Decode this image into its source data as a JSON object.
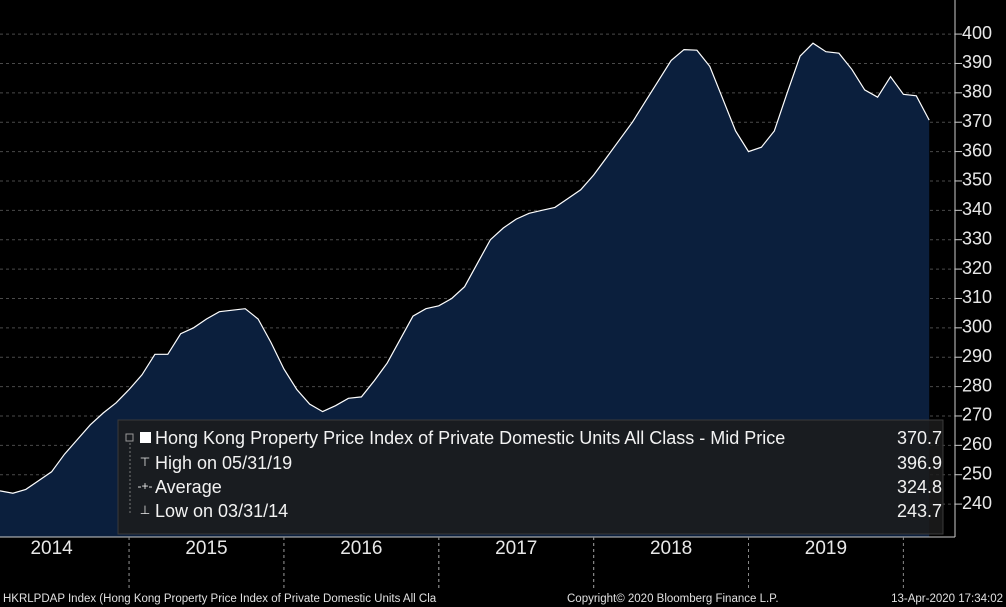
{
  "chart_data": {
    "type": "area",
    "series": [
      {
        "name": "Hong Kong Property Price Index of Private Domestic Units All Class - Mid Price",
        "color": "#0b1f3d",
        "line_color": "#ffffff",
        "x": [
          "2014-02",
          "2014-03",
          "2014-04",
          "2014-05",
          "2014-06",
          "2014-07",
          "2014-08",
          "2014-09",
          "2014-10",
          "2014-11",
          "2014-12",
          "2015-01",
          "2015-02",
          "2015-03",
          "2015-04",
          "2015-05",
          "2015-06",
          "2015-07",
          "2015-08",
          "2015-09",
          "2015-10",
          "2015-11",
          "2015-12",
          "2016-01",
          "2016-02",
          "2016-03",
          "2016-04",
          "2016-05",
          "2016-06",
          "2016-07",
          "2016-08",
          "2016-09",
          "2016-10",
          "2016-11",
          "2016-12",
          "2017-01",
          "2017-02",
          "2017-03",
          "2017-04",
          "2017-05",
          "2017-06",
          "2017-07",
          "2017-08",
          "2017-09",
          "2017-10",
          "2017-11",
          "2017-12",
          "2018-01",
          "2018-02",
          "2018-03",
          "2018-04",
          "2018-05",
          "2018-06",
          "2018-07",
          "2018-08",
          "2018-09",
          "2018-10",
          "2018-11",
          "2018-12",
          "2019-01",
          "2019-02",
          "2019-03",
          "2019-04",
          "2019-05",
          "2019-06",
          "2019-07",
          "2019-08",
          "2019-09",
          "2019-10",
          "2019-11",
          "2019-12",
          "2020-01",
          "2020-02"
        ],
        "values": [
          244.5,
          243.7,
          245,
          248,
          251,
          257,
          262,
          267,
          271,
          274.5,
          279,
          284,
          291,
          291,
          298,
          300,
          303,
          305.5,
          306,
          306.5,
          303,
          295,
          286,
          279,
          274,
          271.5,
          273.5,
          276,
          276.5,
          282,
          288,
          296,
          304,
          306.5,
          307.5,
          310,
          314,
          322,
          330,
          334,
          337,
          339,
          340,
          341,
          344,
          347,
          352,
          358,
          364,
          370,
          377,
          384,
          391,
          394.7,
          394.5,
          389,
          378,
          367,
          360,
          361.5,
          367,
          380,
          392.5,
          396.9,
          394,
          393.5,
          388,
          381,
          378.5,
          385.5,
          379.5,
          379,
          370.7
        ]
      }
    ],
    "xlim": [
      "2014-02",
      "2020-04"
    ],
    "xticks": [
      2014,
      2015,
      2016,
      2017,
      2018,
      2019
    ],
    "ylim": [
      228.8,
      411.6
    ],
    "yticks": [
      240,
      250,
      260,
      270,
      280,
      290,
      300,
      310,
      320,
      330,
      340,
      350,
      360,
      370,
      380,
      390,
      400
    ],
    "grid": true,
    "legend": [
      {
        "label": "Hong Kong Property Price Index of Private Domestic Units All Class - Mid Price",
        "value": 370.7
      },
      {
        "label": "High on 05/31/19",
        "value": 396.9
      },
      {
        "label": "Average",
        "value": 324.8
      },
      {
        "label": "Low on 03/31/14",
        "value": 243.7
      }
    ],
    "footer": {
      "left": "HKRLPDAP Index (Hong Kong Property Price Index of Private Domestic Units All Cla",
      "center": "Copyright© 2020 Bloomberg Finance L.P.",
      "right": "13-Apr-2020 17:34:02"
    }
  }
}
